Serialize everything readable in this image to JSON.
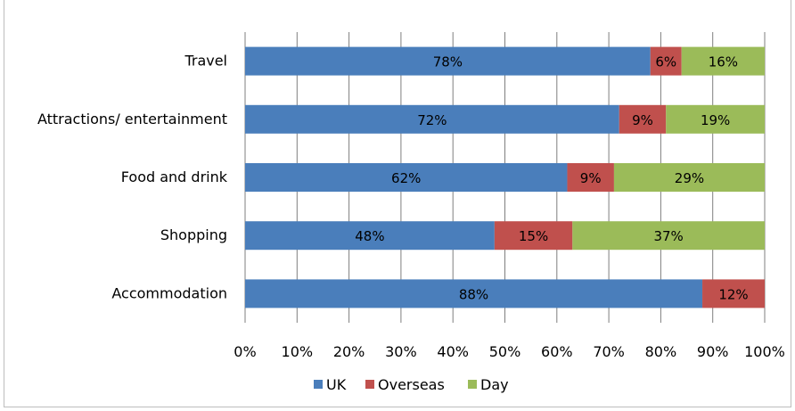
{
  "chart_data": {
    "type": "bar",
    "orientation": "horizontal",
    "stacked": "percent",
    "categories": [
      "Travel",
      "Attractions/ entertainment",
      "Food and drink",
      "Shopping",
      "Accommodation"
    ],
    "series": [
      {
        "name": "UK",
        "color": "#4a7ebb",
        "values": [
          78,
          72,
          62,
          48,
          88
        ],
        "labels": [
          "78%",
          "72%",
          "62%",
          "48%",
          "88%"
        ]
      },
      {
        "name": "Overseas",
        "color": "#c0504d",
        "values": [
          6,
          9,
          9,
          15,
          12
        ],
        "labels": [
          "6%",
          "9%",
          "9%",
          "15%",
          "12%"
        ]
      },
      {
        "name": "Day",
        "color": "#9bbb59",
        "values": [
          16,
          19,
          29,
          37,
          0
        ],
        "labels": [
          "16%",
          "19%",
          "29%",
          "37%",
          ""
        ]
      }
    ],
    "xlim": [
      0,
      100
    ],
    "xticks": [
      "0%",
      "10%",
      "20%",
      "30%",
      "40%",
      "50%",
      "60%",
      "70%",
      "80%",
      "90%",
      "100%"
    ],
    "grid": "vertical",
    "legend_position": "bottom",
    "title": "",
    "xlabel": "",
    "ylabel": ""
  }
}
